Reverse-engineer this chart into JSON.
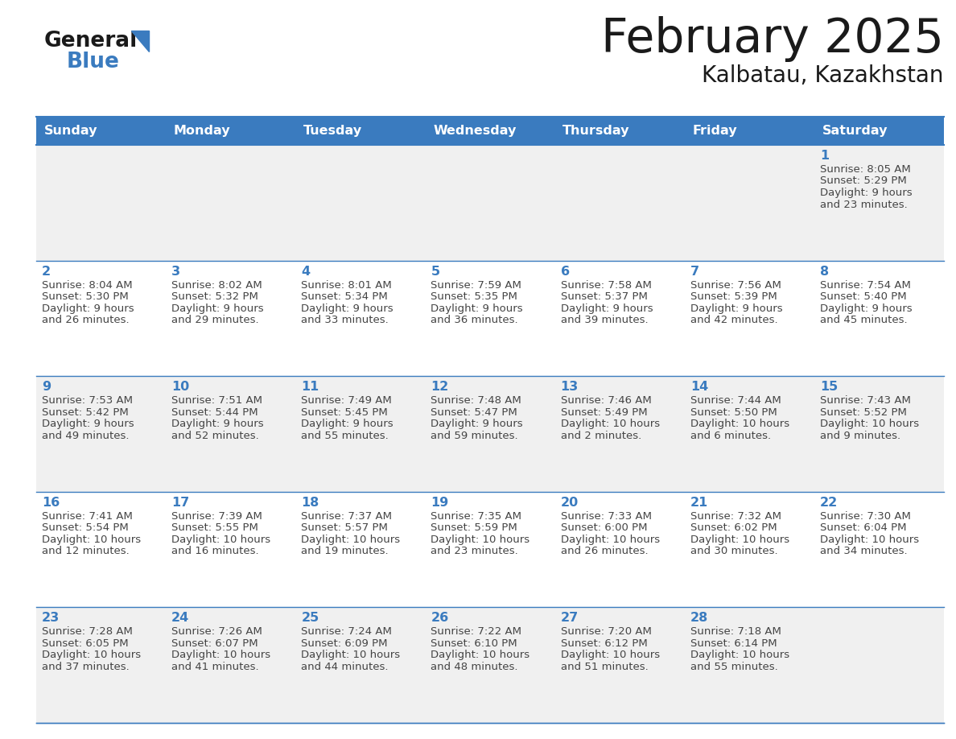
{
  "title": "February 2025",
  "subtitle": "Kalbatau, Kazakhstan",
  "header_color": "#3a7bbf",
  "header_text_color": "#ffffff",
  "day_names": [
    "Sunday",
    "Monday",
    "Tuesday",
    "Wednesday",
    "Thursday",
    "Friday",
    "Saturday"
  ],
  "bg_color": "#ffffff",
  "cell_bg_even": "#f0f0f0",
  "cell_bg_odd": "#ffffff",
  "day_num_color": "#3a7bbf",
  "info_text_color": "#444444",
  "border_color": "#3a7bbf",
  "calendar": [
    [
      null,
      null,
      null,
      null,
      null,
      null,
      1
    ],
    [
      2,
      3,
      4,
      5,
      6,
      7,
      8
    ],
    [
      9,
      10,
      11,
      12,
      13,
      14,
      15
    ],
    [
      16,
      17,
      18,
      19,
      20,
      21,
      22
    ],
    [
      23,
      24,
      25,
      26,
      27,
      28,
      null
    ]
  ],
  "sunrise": {
    "1": "8:05 AM",
    "2": "8:04 AM",
    "3": "8:02 AM",
    "4": "8:01 AM",
    "5": "7:59 AM",
    "6": "7:58 AM",
    "7": "7:56 AM",
    "8": "7:54 AM",
    "9": "7:53 AM",
    "10": "7:51 AM",
    "11": "7:49 AM",
    "12": "7:48 AM",
    "13": "7:46 AM",
    "14": "7:44 AM",
    "15": "7:43 AM",
    "16": "7:41 AM",
    "17": "7:39 AM",
    "18": "7:37 AM",
    "19": "7:35 AM",
    "20": "7:33 AM",
    "21": "7:32 AM",
    "22": "7:30 AM",
    "23": "7:28 AM",
    "24": "7:26 AM",
    "25": "7:24 AM",
    "26": "7:22 AM",
    "27": "7:20 AM",
    "28": "7:18 AM"
  },
  "sunset": {
    "1": "5:29 PM",
    "2": "5:30 PM",
    "3": "5:32 PM",
    "4": "5:34 PM",
    "5": "5:35 PM",
    "6": "5:37 PM",
    "7": "5:39 PM",
    "8": "5:40 PM",
    "9": "5:42 PM",
    "10": "5:44 PM",
    "11": "5:45 PM",
    "12": "5:47 PM",
    "13": "5:49 PM",
    "14": "5:50 PM",
    "15": "5:52 PM",
    "16": "5:54 PM",
    "17": "5:55 PM",
    "18": "5:57 PM",
    "19": "5:59 PM",
    "20": "6:00 PM",
    "21": "6:02 PM",
    "22": "6:04 PM",
    "23": "6:05 PM",
    "24": "6:07 PM",
    "25": "6:09 PM",
    "26": "6:10 PM",
    "27": "6:12 PM",
    "28": "6:14 PM"
  },
  "daylight": {
    "1": "9 hours\nand 23 minutes.",
    "2": "9 hours\nand 26 minutes.",
    "3": "9 hours\nand 29 minutes.",
    "4": "9 hours\nand 33 minutes.",
    "5": "9 hours\nand 36 minutes.",
    "6": "9 hours\nand 39 minutes.",
    "7": "9 hours\nand 42 minutes.",
    "8": "9 hours\nand 45 minutes.",
    "9": "9 hours\nand 49 minutes.",
    "10": "9 hours\nand 52 minutes.",
    "11": "9 hours\nand 55 minutes.",
    "12": "9 hours\nand 59 minutes.",
    "13": "10 hours\nand 2 minutes.",
    "14": "10 hours\nand 6 minutes.",
    "15": "10 hours\nand 9 minutes.",
    "16": "10 hours\nand 12 minutes.",
    "17": "10 hours\nand 16 minutes.",
    "18": "10 hours\nand 19 minutes.",
    "19": "10 hours\nand 23 minutes.",
    "20": "10 hours\nand 26 minutes.",
    "21": "10 hours\nand 30 minutes.",
    "22": "10 hours\nand 34 minutes.",
    "23": "10 hours\nand 37 minutes.",
    "24": "10 hours\nand 41 minutes.",
    "25": "10 hours\nand 44 minutes.",
    "26": "10 hours\nand 48 minutes.",
    "27": "10 hours\nand 51 minutes.",
    "28": "10 hours\nand 55 minutes."
  }
}
